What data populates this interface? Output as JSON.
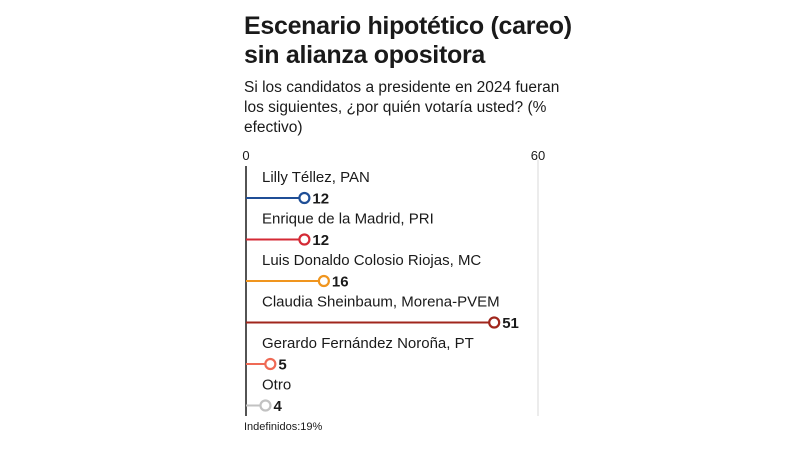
{
  "title": "Escenario hipotético (careo) sin alianza opositora",
  "subtitle": "Si los candidatos a presidente en 2024 fueran los siguientes, ¿por quién votaría usted?  (% efectivo)",
  "footnote": "Indefinidos:19%",
  "chart_data": {
    "type": "bar",
    "orientation": "horizontal",
    "style": "lollipop",
    "categories": [
      "Lilly Téllez, PAN",
      "Enrique de la Madrid, PRI",
      "Luis Donaldo Colosio Riojas, MC",
      "Claudia Sheinbaum, Morena-PVEM",
      "Gerardo Fernández Noroña, PT",
      "Otro"
    ],
    "values": [
      12,
      12,
      16,
      51,
      5,
      4
    ],
    "value_labels": [
      "12",
      "12",
      "16",
      "51",
      "5",
      "4"
    ],
    "colors": [
      "#1f4e96",
      "#d42a35",
      "#f0951e",
      "#a0261c",
      "#ef6a55",
      "#c2c2c2"
    ],
    "xlim": [
      0,
      60
    ],
    "xticks": [
      0,
      60
    ],
    "tick_labels": [
      "0",
      "60"
    ],
    "grid": true
  }
}
